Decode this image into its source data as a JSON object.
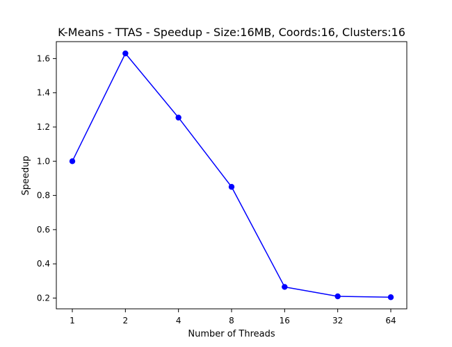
{
  "chart_data": {
    "type": "line",
    "title": "K-Means - TTAS - Speedup - Size:16MB, Coords:16, Clusters:16",
    "xlabel": "Number of Threads",
    "ylabel": "Speedup",
    "categories": [
      "1",
      "2",
      "4",
      "8",
      "16",
      "32",
      "64"
    ],
    "series": [
      {
        "values": [
          1.0,
          1.63,
          1.255,
          0.85,
          0.265,
          0.21,
          0.205
        ],
        "color": "#0000ff",
        "marker": "circle"
      }
    ],
    "yticks": [
      0.2,
      0.4,
      0.6,
      0.8,
      1.0,
      1.2,
      1.4,
      1.6
    ],
    "ytick_labels": [
      "0.2",
      "0.4",
      "0.6",
      "0.8",
      "1.0",
      "1.2",
      "1.4",
      "1.6"
    ],
    "ylim": [
      0.137,
      1.699
    ],
    "grid": false,
    "legend": "none"
  }
}
